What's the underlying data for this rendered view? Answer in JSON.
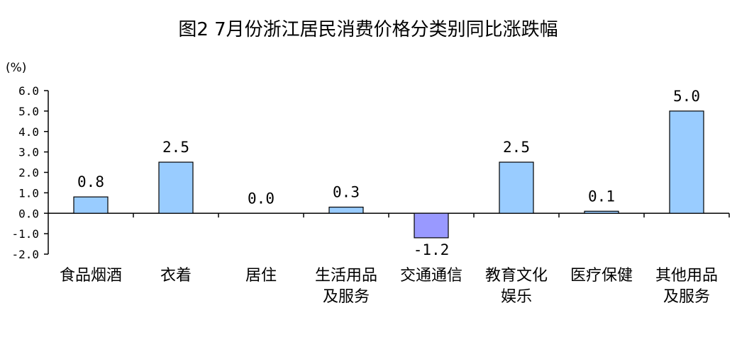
{
  "chart_data": {
    "type": "bar",
    "title": "图2  7月份浙江居民消费价格分类别同比涨跌幅",
    "unit_label": "(%)",
    "categories": [
      [
        "食品烟酒"
      ],
      [
        "衣着"
      ],
      [
        "居住"
      ],
      [
        "生活用品",
        "及服务"
      ],
      [
        "交通通信"
      ],
      [
        "教育文化",
        "娱乐"
      ],
      [
        "医疗保健"
      ],
      [
        "其他用品",
        "及服务"
      ]
    ],
    "values": [
      0.8,
      2.5,
      0.0,
      0.3,
      -1.2,
      2.5,
      0.1,
      5.0
    ],
    "value_labels": [
      "0.8",
      "2.5",
      "0.0",
      "0.3",
      "-1.2",
      "2.5",
      "0.1",
      "5.0"
    ],
    "ylim": [
      -2.0,
      6.0
    ],
    "y_ticks": [
      "6.0",
      "5.0",
      "4.0",
      "3.0",
      "2.0",
      "1.0",
      "0.0",
      "-1.0",
      "-2.0"
    ],
    "y_tick_values": [
      6,
      5,
      4,
      3,
      2,
      1,
      0,
      -1,
      -2
    ],
    "grid": false,
    "legend": "none",
    "colors": {
      "positive_bar": "#99CCFF",
      "negative_bar": "#9999FF",
      "bar_outline": "#000000",
      "axis": "#000000"
    }
  }
}
